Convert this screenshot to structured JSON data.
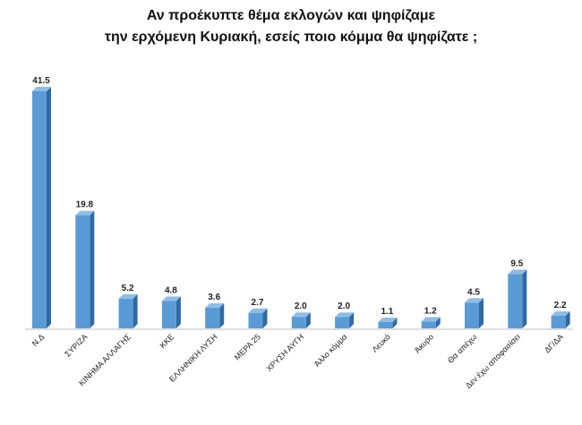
{
  "chart_data": {
    "type": "bar",
    "title_lines": [
      "Αν προέκυπτε θέμα εκλογών και ψηφίζαμε",
      "την ερχόμενη Κυριακή, εσείς ποιο κόμμα θα ψηφίζατε ;"
    ],
    "categories": [
      "Ν.Δ",
      "ΣΥΡΙΖΑ",
      "ΚΙΝΗΜΑ ΑΛΛΑΓΗΣ",
      "ΚΚΕ",
      "ΕΛΛΗΝΙΚΗ ΛΥΣΗ",
      "ΜΕΡΑ 25",
      "ΧΡΥΣΗ ΑΥΓΗ",
      "Άλλο κόμμα",
      "Λευκό",
      "Άκυρο",
      "Θα απέχω",
      "Δεν έχω αποφασίσει",
      "ΔΓ/ΔΑ"
    ],
    "values": [
      41.5,
      19.8,
      5.2,
      4.8,
      3.6,
      2.7,
      2.0,
      2.0,
      1.1,
      1.2,
      4.5,
      9.5,
      2.2
    ],
    "value_labels": [
      "41.5",
      "19.8",
      "5.2",
      "4.8",
      "3.6",
      "2.7",
      "2.0",
      "2.0",
      "1.1",
      "1.2",
      "4.5",
      "9.5",
      "2.2"
    ],
    "ylim": [
      0,
      41.5
    ],
    "grid": false,
    "legend": "none",
    "bar_color": "#5b9bd5",
    "bar_side_color": "#2f6aa3",
    "bar_top_color": "#8fbde6"
  }
}
